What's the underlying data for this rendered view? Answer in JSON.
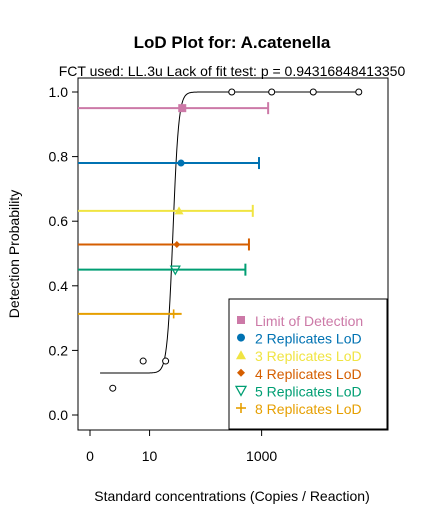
{
  "chart_data": {
    "type": "scatter",
    "title": "LoD Plot for: A.catenella",
    "subtitle": "FCT used: LL.3u    Lack of fit test: p = 0.94316848413350",
    "xlabel": "Standard concentrations (Copies / Reaction)",
    "ylabel": "Detection Probability",
    "x_scale": "log10(x+1)",
    "xlim": [
      0,
      100000
    ],
    "ylim": [
      0,
      1
    ],
    "x_ticks": [
      {
        "value": 0,
        "label": "0"
      },
      {
        "value": 10,
        "label": "10"
      },
      {
        "value": 1000,
        "label": "1000"
      }
    ],
    "y_ticks": [
      {
        "value": 0.0,
        "label": "0.0"
      },
      {
        "value": 0.2,
        "label": "0.2"
      },
      {
        "value": 0.4,
        "label": "0.4"
      },
      {
        "value": 0.6,
        "label": "0.6"
      },
      {
        "value": 0.8,
        "label": "0.8"
      },
      {
        "value": 1.0,
        "label": "1.0"
      }
    ],
    "observed_points": [
      {
        "x": 1.5,
        "y": 0.083
      },
      {
        "x": 7.5,
        "y": 0.167
      },
      {
        "x": 20,
        "y": 0.167
      },
      {
        "x": 40,
        "y": 0.95
      },
      {
        "x": 300,
        "y": 1.0
      },
      {
        "x": 1500,
        "y": 1.0
      },
      {
        "x": 8000,
        "y": 1.0
      },
      {
        "x": 50000,
        "y": 1.0
      }
    ],
    "fitted_curve": {
      "model": "LL.3u",
      "lower": 0.13,
      "upper": 1.0,
      "ed50_log": 1.45,
      "slope": 50
    },
    "lod_series": [
      {
        "name": "Limit of Detection",
        "color": "#CC79A7",
        "marker": "square",
        "y": 0.95,
        "x": 40,
        "ci_upper": 1300
      },
      {
        "name": "2 Replicates LoD",
        "color": "#0072B2",
        "marker": "filled-circle",
        "y": 0.78,
        "x": 38,
        "ci_upper": 900
      },
      {
        "name": "3 Replicates LoD",
        "color": "#F0E442",
        "marker": "triangle-up",
        "y": 0.632,
        "x": 35,
        "ci_upper": 700
      },
      {
        "name": "4 Replicates LoD",
        "color": "#D55E00",
        "marker": "diamond",
        "y": 0.528,
        "x": 32,
        "ci_upper": 600
      },
      {
        "name": "5 Replicates LoD",
        "color": "#009E73",
        "marker": "triangle-down",
        "y": 0.45,
        "x": 30,
        "ci_upper": 520
      },
      {
        "name": "8 Replicates LoD",
        "color": "#E69F00",
        "marker": "plus",
        "y": 0.313,
        "x": 28,
        "ci_upper": 0
      }
    ],
    "legend_position": "bottom-right",
    "grid": false
  }
}
